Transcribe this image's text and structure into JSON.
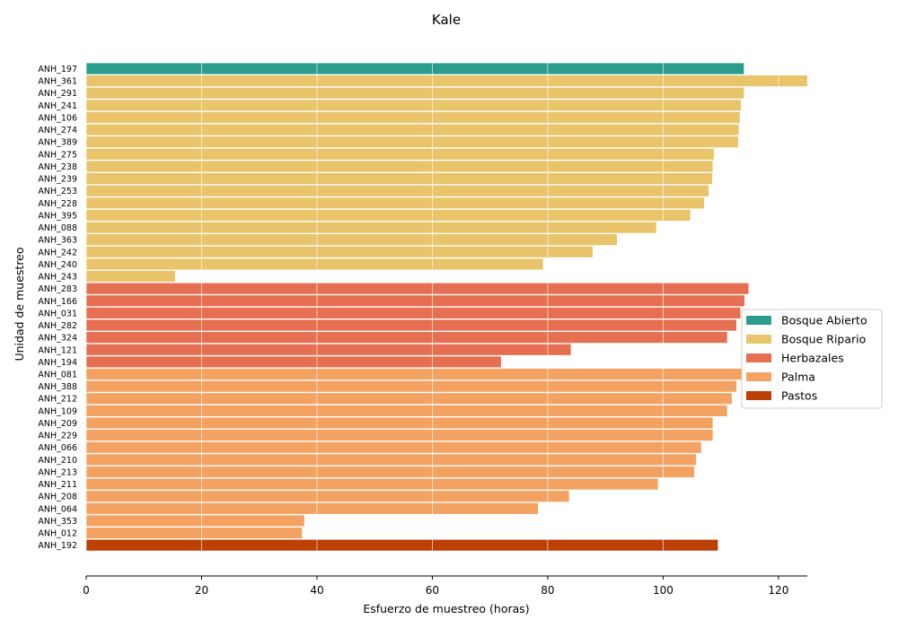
{
  "chart_data": {
    "type": "bar",
    "orientation": "horizontal",
    "title": "Kale",
    "xlabel": "Esfuerzo de muestreo (horas)",
    "ylabel": "Unidad de muestreo",
    "xlim": [
      0,
      125
    ],
    "xticks": [
      "0",
      "20",
      "40",
      "60",
      "80",
      "100",
      "120"
    ],
    "grid": true,
    "legend_position": "right",
    "legend": [
      {
        "name": "Bosque Abierto",
        "color": "#2a9d8f"
      },
      {
        "name": "Bosque Ripario",
        "color": "#e9c46a"
      },
      {
        "name": "Herbazales",
        "color": "#e76f51"
      },
      {
        "name": "Palma",
        "color": "#f4a261"
      },
      {
        "name": "Pastos",
        "color": "#bc3f04"
      }
    ],
    "bars": [
      {
        "label": "ANH_197",
        "value": 114.0,
        "group": "Bosque Abierto"
      },
      {
        "label": "ANH_361",
        "value": 125.0,
        "group": "Bosque Ripario"
      },
      {
        "label": "ANH_291",
        "value": 114.0,
        "group": "Bosque Ripario"
      },
      {
        "label": "ANH_241",
        "value": 113.5,
        "group": "Bosque Ripario"
      },
      {
        "label": "ANH_106",
        "value": 113.3,
        "group": "Bosque Ripario"
      },
      {
        "label": "ANH_274",
        "value": 113.1,
        "group": "Bosque Ripario"
      },
      {
        "label": "ANH_389",
        "value": 113.0,
        "group": "Bosque Ripario"
      },
      {
        "label": "ANH_275",
        "value": 108.8,
        "group": "Bosque Ripario"
      },
      {
        "label": "ANH_238",
        "value": 108.6,
        "group": "Bosque Ripario"
      },
      {
        "label": "ANH_239",
        "value": 108.5,
        "group": "Bosque Ripario"
      },
      {
        "label": "ANH_253",
        "value": 107.9,
        "group": "Bosque Ripario"
      },
      {
        "label": "ANH_228",
        "value": 107.1,
        "group": "Bosque Ripario"
      },
      {
        "label": "ANH_395",
        "value": 104.7,
        "group": "Bosque Ripario"
      },
      {
        "label": "ANH_088",
        "value": 98.8,
        "group": "Bosque Ripario"
      },
      {
        "label": "ANH_363",
        "value": 92.0,
        "group": "Bosque Ripario"
      },
      {
        "label": "ANH_242",
        "value": 87.8,
        "group": "Bosque Ripario"
      },
      {
        "label": "ANH_240",
        "value": 79.2,
        "group": "Bosque Ripario"
      },
      {
        "label": "ANH_243",
        "value": 15.4,
        "group": "Bosque Ripario"
      },
      {
        "label": "ANH_283",
        "value": 114.8,
        "group": "Herbazales"
      },
      {
        "label": "ANH_166",
        "value": 114.1,
        "group": "Herbazales"
      },
      {
        "label": "ANH_031",
        "value": 113.4,
        "group": "Herbazales"
      },
      {
        "label": "ANH_282",
        "value": 112.7,
        "group": "Herbazales"
      },
      {
        "label": "ANH_324",
        "value": 111.1,
        "group": "Herbazales"
      },
      {
        "label": "ANH_121",
        "value": 84.0,
        "group": "Herbazales"
      },
      {
        "label": "ANH_194",
        "value": 71.9,
        "group": "Herbazales"
      },
      {
        "label": "ANH_081",
        "value": 113.7,
        "group": "Palma"
      },
      {
        "label": "ANH_388",
        "value": 112.7,
        "group": "Palma"
      },
      {
        "label": "ANH_212",
        "value": 111.9,
        "group": "Palma"
      },
      {
        "label": "ANH_109",
        "value": 111.1,
        "group": "Palma"
      },
      {
        "label": "ANH_209",
        "value": 108.6,
        "group": "Palma"
      },
      {
        "label": "ANH_229",
        "value": 108.6,
        "group": "Palma"
      },
      {
        "label": "ANH_066",
        "value": 106.6,
        "group": "Palma"
      },
      {
        "label": "ANH_210",
        "value": 105.7,
        "group": "Palma"
      },
      {
        "label": "ANH_213",
        "value": 105.4,
        "group": "Palma"
      },
      {
        "label": "ANH_211",
        "value": 99.1,
        "group": "Palma"
      },
      {
        "label": "ANH_208",
        "value": 83.7,
        "group": "Palma"
      },
      {
        "label": "ANH_064",
        "value": 78.3,
        "group": "Palma"
      },
      {
        "label": "ANH_353",
        "value": 37.8,
        "group": "Palma"
      },
      {
        "label": "ANH_012",
        "value": 37.4,
        "group": "Palma"
      },
      {
        "label": "ANH_192",
        "value": 109.5,
        "group": "Pastos"
      }
    ]
  }
}
